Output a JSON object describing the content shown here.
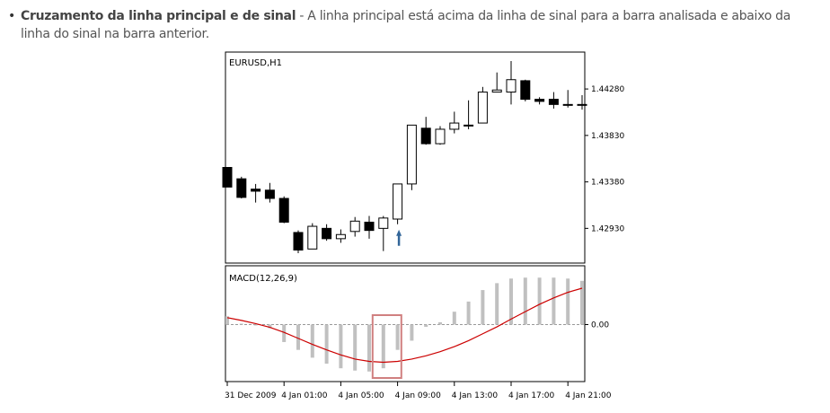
{
  "paragraph": {
    "bullet": "•",
    "lead": "Cruzamento da linha principal e de sinal",
    "body": " - A linha principal está acima da linha de sinal para a barra analisada e abaixo da linha do sinal na barra anterior."
  },
  "chart_data": [
    {
      "type": "candlestick",
      "title": "EURUSD,H1",
      "y_ticks": [
        "1.44280",
        "1.43830",
        "1.43380",
        "1.42930"
      ],
      "y_tick_values": [
        1.4428,
        1.4383,
        1.4338,
        1.4293
      ],
      "ylim": [
        1.4262,
        1.4462
      ],
      "candles": [
        {
          "o": 1.4352,
          "h": 1.4352,
          "l": 1.4333,
          "c": 1.4333
        },
        {
          "o": 1.4341,
          "h": 1.4343,
          "l": 1.4322,
          "c": 1.4323
        },
        {
          "o": 1.4331,
          "h": 1.4336,
          "l": 1.4318,
          "c": 1.4329
        },
        {
          "o": 1.433,
          "h": 1.4337,
          "l": 1.4318,
          "c": 1.4322
        },
        {
          "o": 1.4322,
          "h": 1.4324,
          "l": 1.4298,
          "c": 1.4299
        },
        {
          "o": 1.4289,
          "h": 1.4291,
          "l": 1.4269,
          "c": 1.4272
        },
        {
          "o": 1.4273,
          "h": 1.4298,
          "l": 1.4273,
          "c": 1.4295
        },
        {
          "o": 1.4293,
          "h": 1.4297,
          "l": 1.4281,
          "c": 1.4283
        },
        {
          "o": 1.4283,
          "h": 1.4292,
          "l": 1.4279,
          "c": 1.4287
        },
        {
          "o": 1.429,
          "h": 1.4304,
          "l": 1.4285,
          "c": 1.43
        },
        {
          "o": 1.4299,
          "h": 1.4305,
          "l": 1.4283,
          "c": 1.4291
        },
        {
          "o": 1.4293,
          "h": 1.4305,
          "l": 1.4271,
          "c": 1.4303
        },
        {
          "o": 1.4302,
          "h": 1.4336,
          "l": 1.4297,
          "c": 1.4336
        },
        {
          "o": 1.4336,
          "h": 1.4393,
          "l": 1.433,
          "c": 1.4393
        },
        {
          "o": 1.439,
          "h": 1.4401,
          "l": 1.4374,
          "c": 1.4375
        },
        {
          "o": 1.4375,
          "h": 1.4392,
          "l": 1.4374,
          "c": 1.4389
        },
        {
          "o": 1.4389,
          "h": 1.4406,
          "l": 1.4385,
          "c": 1.4395
        },
        {
          "o": 1.4393,
          "h": 1.4417,
          "l": 1.4389,
          "c": 1.4393
        },
        {
          "o": 1.4395,
          "h": 1.443,
          "l": 1.4395,
          "c": 1.4425
        },
        {
          "o": 1.4425,
          "h": 1.4444,
          "l": 1.4425,
          "c": 1.4427
        },
        {
          "o": 1.4425,
          "h": 1.4455,
          "l": 1.4413,
          "c": 1.4437
        },
        {
          "o": 1.4436,
          "h": 1.4437,
          "l": 1.4416,
          "c": 1.4418
        },
        {
          "o": 1.4418,
          "h": 1.442,
          "l": 1.4413,
          "c": 1.4416
        },
        {
          "o": 1.4418,
          "h": 1.4425,
          "l": 1.4409,
          "c": 1.4413
        },
        {
          "o": 1.4413,
          "h": 1.4427,
          "l": 1.441,
          "c": 1.4413
        },
        {
          "o": 1.4413,
          "h": 1.4422,
          "l": 1.4408,
          "c": 1.4413
        }
      ],
      "arrow_index": 12
    },
    {
      "type": "bar+line",
      "title": "MACD(12,26,9)",
      "y_ticks": [
        "0.00"
      ],
      "y_tick_values": [
        0
      ],
      "ylim": [
        -1.2,
        1.2
      ],
      "histogram": [
        0.18,
        0.02,
        -0.02,
        -0.08,
        -0.38,
        -0.55,
        -0.72,
        -0.85,
        -0.95,
        -1.0,
        -1.02,
        -0.95,
        -0.55,
        -0.35,
        -0.05,
        0.05,
        0.28,
        0.5,
        0.75,
        0.9,
        1.0,
        1.02,
        1.02,
        1.02,
        1.0,
        0.95
      ],
      "signal": [
        0.15,
        0.09,
        0.02,
        -0.06,
        -0.17,
        -0.3,
        -0.43,
        -0.55,
        -0.66,
        -0.75,
        -0.8,
        -0.82,
        -0.8,
        -0.75,
        -0.68,
        -0.59,
        -0.48,
        -0.35,
        -0.2,
        -0.05,
        0.12,
        0.28,
        0.44,
        0.58,
        0.7,
        0.79
      ],
      "x_tick_labels": [
        "31 Dec 2009",
        "4 Jan 01:00",
        "4 Jan 05:00",
        "4 Jan 09:00",
        "4 Jan 13:00",
        "4 Jan 17:00",
        "4 Jan 21:00"
      ],
      "highlight_index": 11
    }
  ],
  "colors": {
    "bull": "#ffffff",
    "bear": "#000000",
    "histogram": "#c0c0c0",
    "signal": "#cc0000",
    "highlight": "#d08080",
    "arrow": "#336699"
  }
}
